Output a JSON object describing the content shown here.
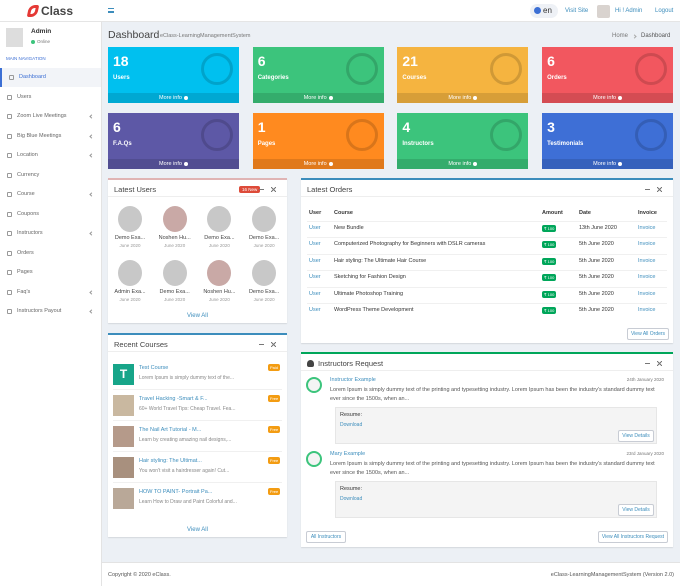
{
  "header": {
    "logo": "Class",
    "lang": "en",
    "visit": "Visit Site",
    "user": "Hi ! Admin",
    "logout": "Logout"
  },
  "sidebar": {
    "name": "Admin",
    "status": "Online",
    "section": "MAIN NAVIGATION",
    "items": [
      "Dashboard",
      "Users",
      "Zoom Live Meetings",
      "Big Blue Meetings",
      "Location",
      "Currency",
      "Course",
      "Coupons",
      "Instructors",
      "Orders",
      "Pages",
      "Faq's",
      "Instructors Payout"
    ]
  },
  "page": {
    "title": "Dashboard",
    "subtitle": "eClass-LearningManagementSystem",
    "breadcrumb": [
      "Home",
      "Dashboard"
    ]
  },
  "stats": [
    {
      "value": 18,
      "label": "Users",
      "more": "More info",
      "color": "#00c0ef"
    },
    {
      "value": 6,
      "label": "Categories",
      "more": "More info",
      "color": "#3cc47c"
    },
    {
      "value": 21,
      "label": "Courses",
      "more": "More info",
      "color": "#f5b440"
    },
    {
      "value": 6,
      "label": "Orders",
      "more": "More info",
      "color": "#f2575f"
    },
    {
      "value": 6,
      "label": "F.A.Qs",
      "more": "More info",
      "color": "#5d58a6"
    },
    {
      "value": 1,
      "label": "Pages",
      "more": "More info",
      "color": "#ff8a1f"
    },
    {
      "value": 4,
      "label": "Instructors",
      "more": "More info",
      "color": "#3cc47c"
    },
    {
      "value": 3,
      "label": "Testimonials",
      "more": "More info",
      "color": "#3e6fd6"
    }
  ],
  "latest_users": {
    "title": "Latest Users",
    "badge": "16 New",
    "link": "View All",
    "users": [
      {
        "name": "Demo Exa...",
        "date": "June 2020"
      },
      {
        "name": "Noshen Hu...",
        "date": "June 2020"
      },
      {
        "name": "Demo Exa...",
        "date": "June 2020"
      },
      {
        "name": "Demo Exa...",
        "date": "June 2020"
      },
      {
        "name": "Admin Exa...",
        "date": "June 2020"
      },
      {
        "name": "Demo Exa...",
        "date": "June 2020"
      },
      {
        "name": "Noshen Hu...",
        "date": "June 2020"
      },
      {
        "name": "Demo Exa...",
        "date": "June 2020"
      }
    ]
  },
  "latest_orders": {
    "title": "Latest Orders",
    "columns": [
      "User",
      "Course",
      "Amount",
      "Date",
      "Invoice"
    ],
    "rows": [
      [
        "User",
        "New Bundle",
        "₹ 100",
        "13th June 2020",
        "Invoice"
      ],
      [
        "User",
        "Computerized Photography for Beginners with DSLR cameras",
        "₹ 100",
        "5th June 2020",
        "Invoice"
      ],
      [
        "User",
        "Hair styling: The Ultimate Hair Course",
        "₹ 100",
        "5th June 2020",
        "Invoice"
      ],
      [
        "User",
        "Sketching for Fashion Design",
        "₹ 100",
        "5th June 2020",
        "Invoice"
      ],
      [
        "User",
        "Ultimate Photoshop Training",
        "₹ 100",
        "5th June 2020",
        "Invoice"
      ],
      [
        "User",
        "WordPress Theme Development",
        "₹ 100",
        "5th June 2020",
        "Invoice"
      ]
    ],
    "button": "View All Orders"
  },
  "recent_courses": {
    "title": "Recent Courses",
    "link": "View All",
    "items": [
      {
        "thumb": "T",
        "title": "Test Course",
        "text": "Lorem Ipsum is simply dummy text of the...",
        "badge": "Paid"
      },
      {
        "title": "Travel Hacking -Smart & F...",
        "text": "60+ World Travel Tips: Cheap Travel. Fea...",
        "badge": "Free"
      },
      {
        "title": "The Nail Art Tutorial - M...",
        "text": "Learn by creating amazing nail designs,...",
        "badge": "Free"
      },
      {
        "title": "Hair styling: The Ultimat...",
        "text": "You won't visit a hairdresser again! Cut...",
        "badge": "Free"
      },
      {
        "title": "HOW TO PAINT- Portrait Pa...",
        "text": "Learn How to Draw and Paint Colorful and...",
        "badge": "Free"
      }
    ]
  },
  "instructors_request": {
    "title": "Instructors Request",
    "items": [
      {
        "name": "Instructor Example",
        "date": "24th January 2020",
        "text": "Lorem Ipsum is simply dummy text of the printing and typesetting industry. Lorem Ipsum has been the industry's standard dummy text ever since the 1500s, when an...",
        "resume": "Resume:",
        "download": "Download",
        "button": "View Details"
      },
      {
        "name": "Mary Example",
        "date": "23rd January 2020",
        "text": "Lorem Ipsum is simply dummy text of the printing and typesetting industry. Lorem Ipsum has been the industry's standard dummy text ever since the 1500s, when an...",
        "resume": "Resume:",
        "download": "Download",
        "button": "View Details"
      }
    ],
    "buttons": [
      "All Instructors",
      "View All Instructors Request"
    ]
  },
  "footer": {
    "copyright": "Copyright © 2020 eClass.",
    "version": "eClass-LearningManagementSystem (Version 2.0)"
  }
}
